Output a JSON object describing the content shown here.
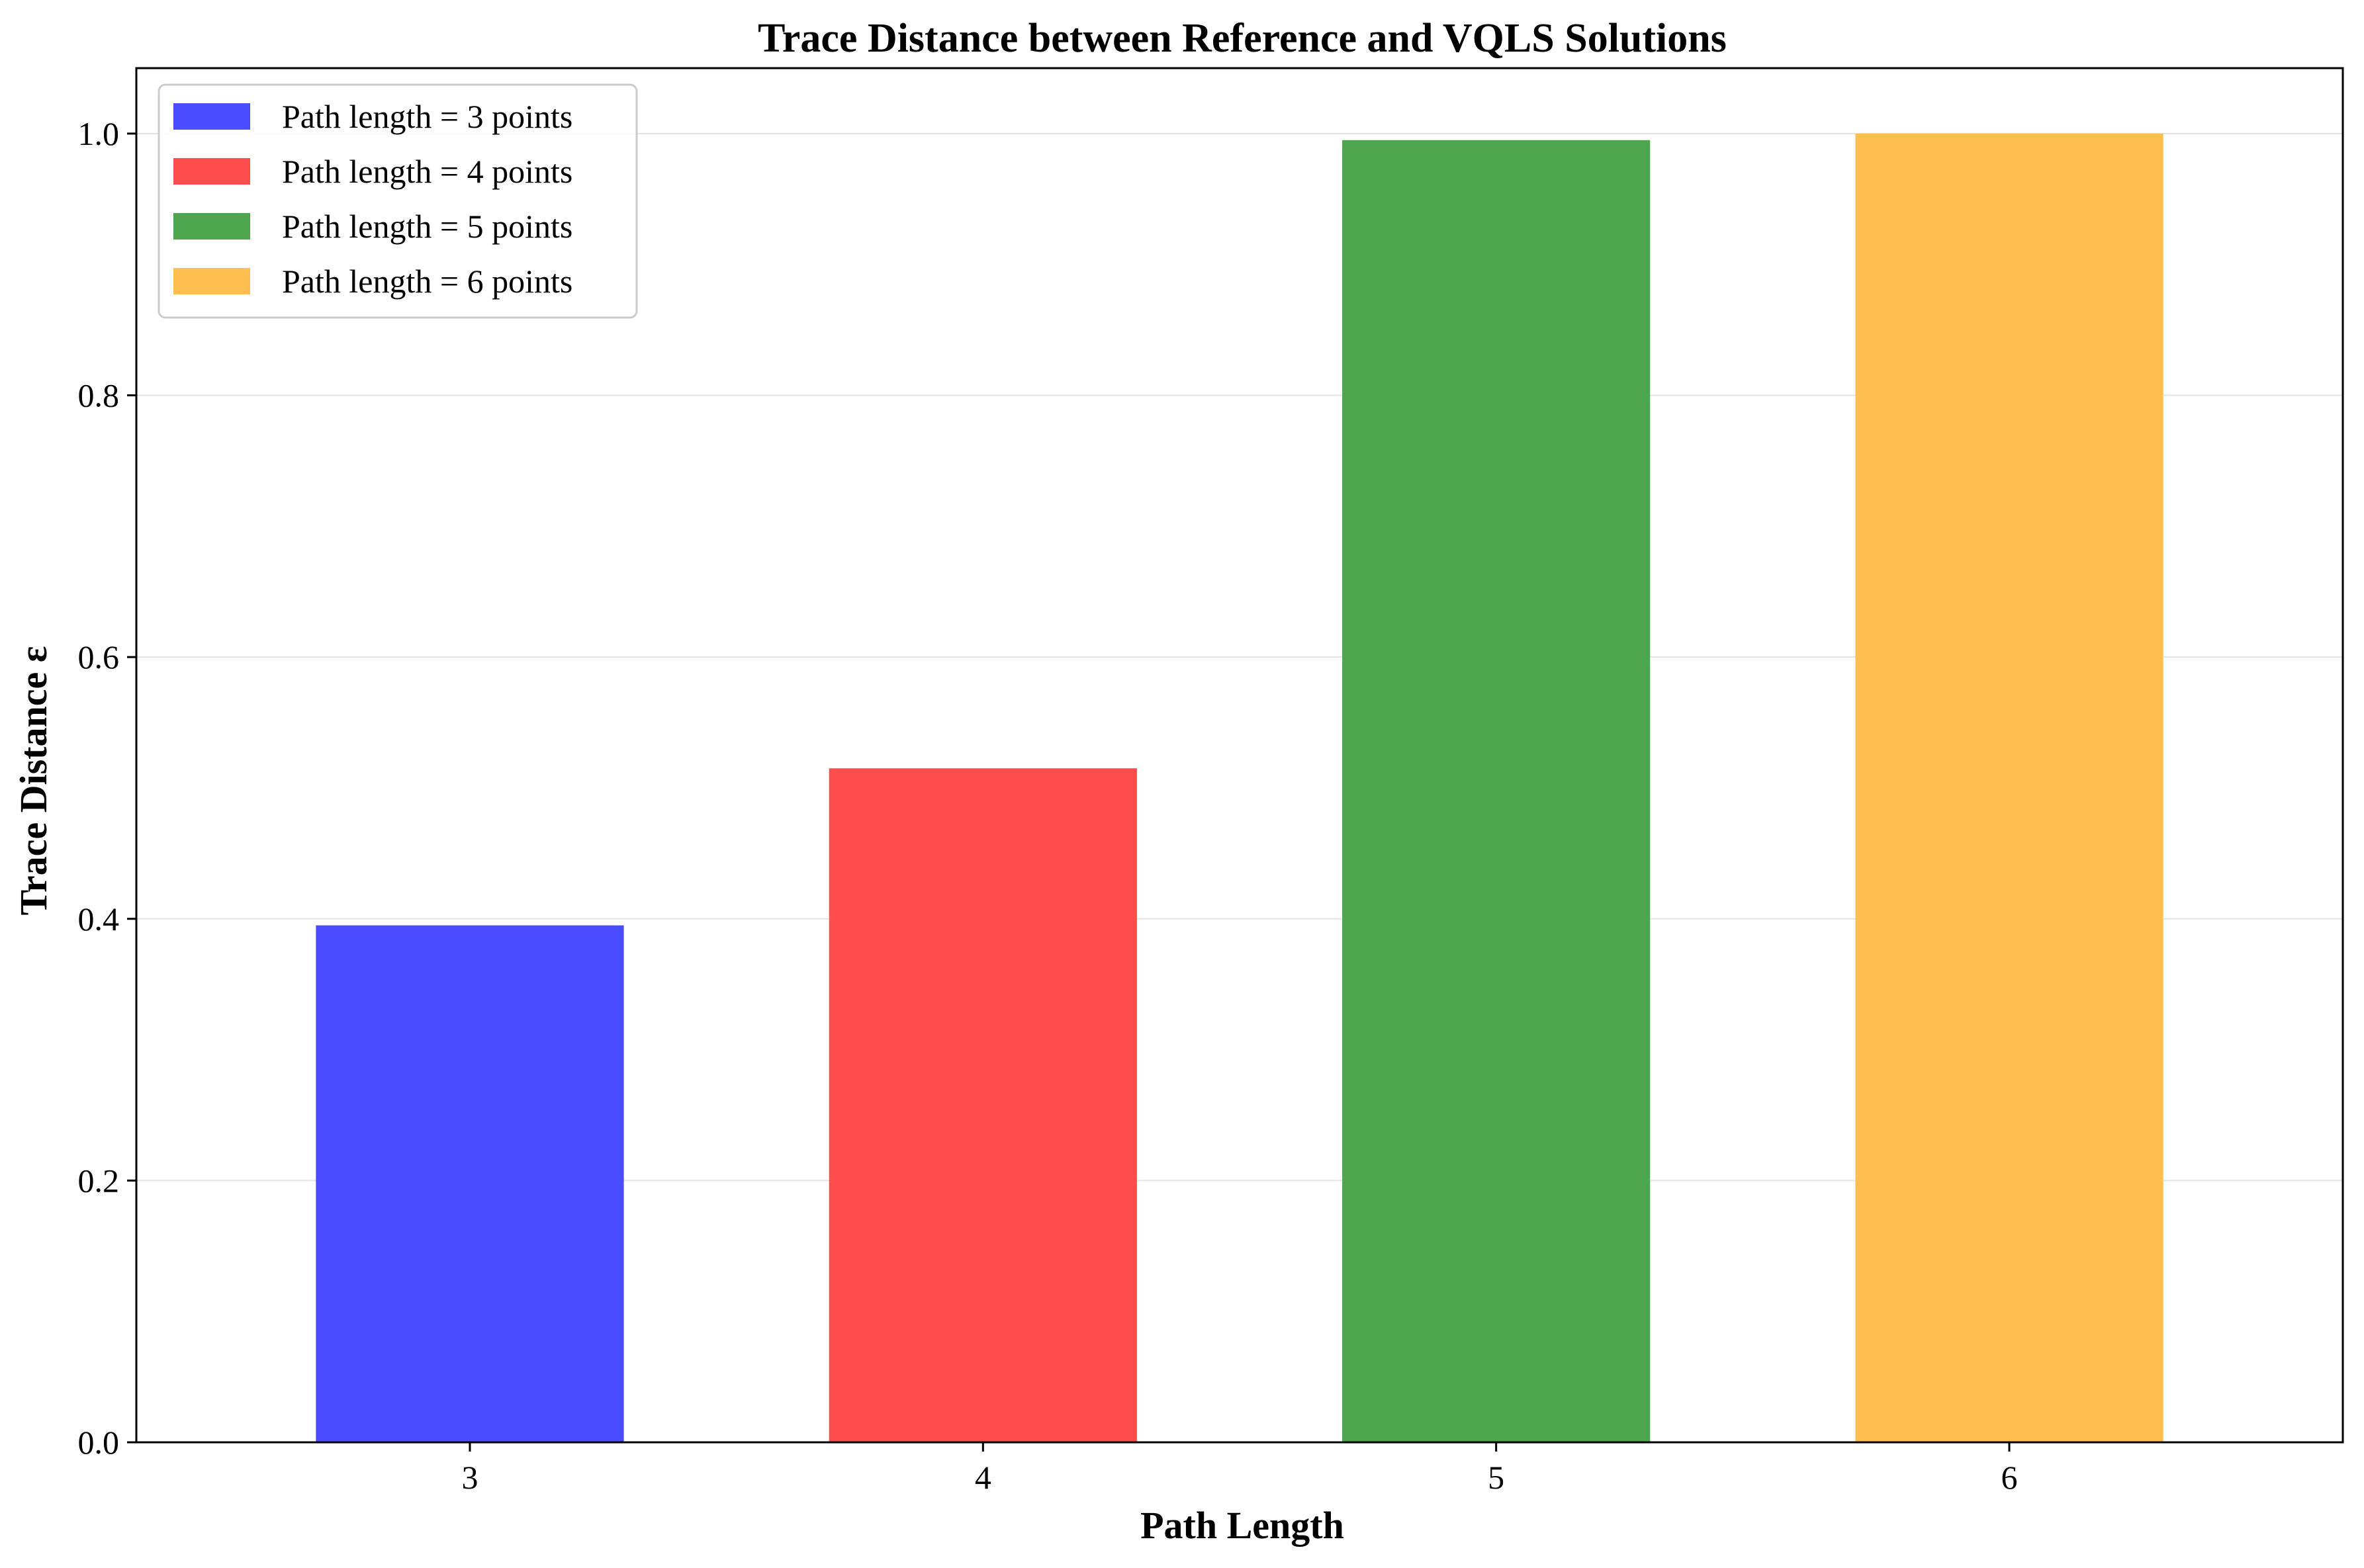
{
  "chart_data": {
    "type": "bar",
    "title": "Trace Distance between Reference and VQLS Solutions",
    "xlabel": "Path Length",
    "ylabel": "Trace Distance ε",
    "categories": [
      "3",
      "4",
      "5",
      "6"
    ],
    "values": [
      0.395,
      0.515,
      0.995,
      1.0
    ],
    "colors": [
      "#4b4bff",
      "#ff4d4d",
      "#4da64d",
      "#ffbf50"
    ],
    "ylim": [
      0,
      1.05
    ],
    "yticks": [
      "0.0",
      "0.2",
      "0.4",
      "0.6",
      "0.8",
      "1.0"
    ],
    "ytick_values": [
      0,
      0.2,
      0.4,
      0.6,
      0.8,
      1.0
    ],
    "grid": "horizontal",
    "legend_position": "top-left",
    "legend": [
      "Path length = 3 points",
      "Path length = 4 points",
      "Path length = 5 points",
      "Path length = 6 points"
    ]
  }
}
